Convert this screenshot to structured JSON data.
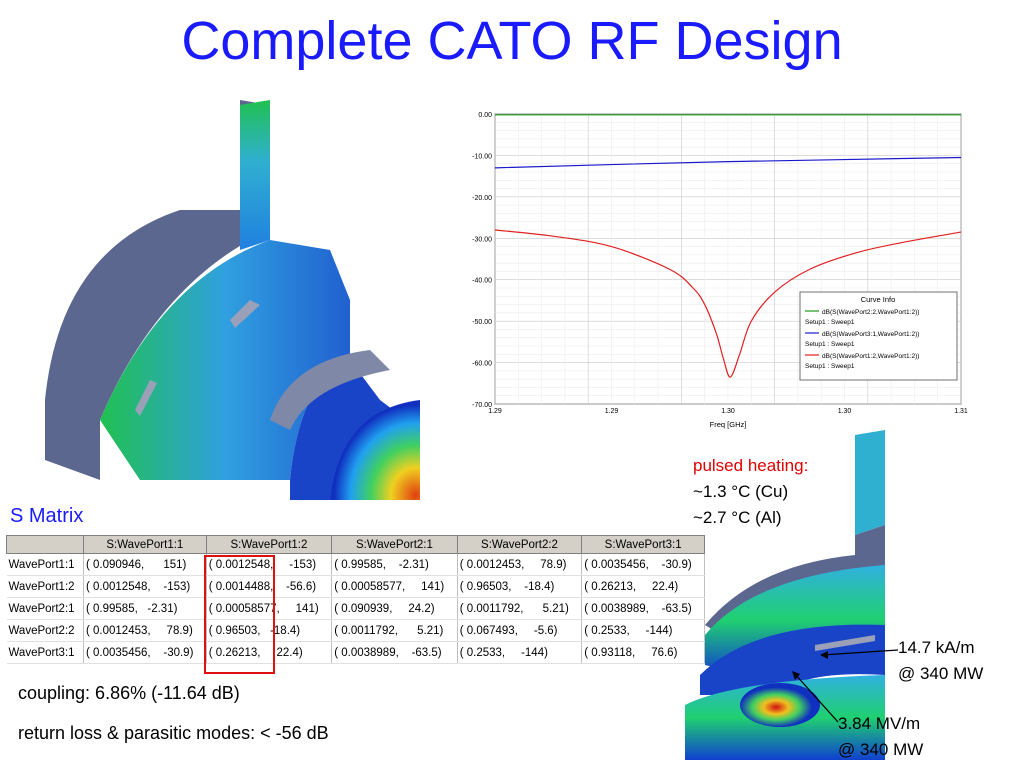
{
  "slide": {
    "title": "Complete CATO RF Design"
  },
  "chart_data": {
    "type": "line",
    "xlabel": "Freq [GHz]",
    "ylim": [
      -70,
      0
    ],
    "xlim": [
      1.2875,
      1.3075
    ],
    "yticks": [
      "0.00",
      "-10.00",
      "-20.00",
      "-30.00",
      "-40.00",
      "-50.00",
      "-60.00",
      "-70.00"
    ],
    "ytick_values": [
      0,
      -10,
      -20,
      -30,
      -40,
      -50,
      -60,
      -70
    ],
    "xticks": [
      "1.29",
      "1.29",
      "1.30",
      "1.30",
      "1.31"
    ],
    "xtick_values": [
      1.2875,
      1.2925,
      1.2975,
      1.3025,
      1.3075
    ],
    "grid": true,
    "legend_title": "Curve Info",
    "legend_position": "bottom-right",
    "series": [
      {
        "name": "dB(S(WavePort2:2,WavePort1:2))",
        "sub": "Setup1 : Sweep1",
        "color": "#1a9a1a",
        "x": [
          1.2875,
          1.2925,
          1.2975,
          1.3025,
          1.3075
        ],
        "values": [
          -0.2,
          -0.2,
          -0.2,
          -0.2,
          -0.2
        ]
      },
      {
        "name": "dB(S(WavePort3:1,WavePort1:2))",
        "sub": "Setup1 : Sweep1",
        "color": "#1a1acc",
        "x": [
          1.2875,
          1.2925,
          1.2975,
          1.3025,
          1.3075
        ],
        "values": [
          -13.0,
          -12.2,
          -11.5,
          -11.0,
          -10.5
        ]
      },
      {
        "name": "dB(S(WavePort1:2,WavePort1:2))",
        "sub": "Setup1 : Sweep1",
        "color": "#e02020",
        "x": [
          1.2875,
          1.29,
          1.2925,
          1.295,
          1.296,
          1.2965,
          1.297,
          1.2973,
          1.2976,
          1.298,
          1.2985,
          1.2995,
          1.301,
          1.303,
          1.305,
          1.3075
        ],
        "values": [
          -28.0,
          -29.5,
          -32.0,
          -37.5,
          -42.0,
          -46.0,
          -53.0,
          -59.0,
          -63.5,
          -58.0,
          -50.0,
          -43.0,
          -37.5,
          -33.5,
          -31.0,
          -28.5
        ]
      }
    ]
  },
  "smatrix": {
    "label": "S Matrix",
    "columns": [
      "",
      "S:WavePort1:1",
      "S:WavePort1:2",
      "S:WavePort2:1",
      "S:WavePort2:2",
      "S:WavePort3:1"
    ],
    "rows": [
      [
        "WavePort1:1",
        "( 0.090946,      151)",
        "( 0.0012548,     -153)",
        "( 0.99585,    -2.31)",
        "( 0.0012453,     78.9)",
        "( 0.0035456,    -30.9)"
      ],
      [
        "WavePort1:2",
        "( 0.0012548,    -153)",
        "( 0.0014488,    -56.6)",
        "( 0.00058577,     141)",
        "( 0.96503,    -18.4)",
        "( 0.26213,     22.4)"
      ],
      [
        "WavePort2:1",
        "( 0.99585,   -2.31)",
        "( 0.00058577,     141)",
        "( 0.090939,     24.2)",
        "( 0.0011792,      5.21)",
        "( 0.0038989,    -63.5)"
      ],
      [
        "WavePort2:2",
        "( 0.0012453,     78.9)",
        "( 0.96503,   -18.4)",
        "( 0.0011792,      5.21)",
        "( 0.067493,     -5.6)",
        "( 0.2533,     -144)"
      ],
      [
        "WavePort3:1",
        "( 0.0035456,    -30.9)",
        "( 0.26213,     22.4)",
        "( 0.0038989,    -63.5)",
        "( 0.2533,     -144)",
        "( 0.93118,     76.6)"
      ]
    ]
  },
  "notes": {
    "coupling": "coupling: 6.86% (-11.64 dB)",
    "return_loss": "return loss & parasitic modes:  < -56 dB"
  },
  "annotations": {
    "pulsed_heating": "pulsed heating:",
    "cu": "~1.3 °C (Cu)",
    "al": "~2.7 °C (Al)",
    "h_field": "14.7 kA/m",
    "h_power": "@ 340 MW",
    "e_field": "3.84 MV/m",
    "e_power": "@ 340 MW"
  },
  "colors": {
    "title": "#1a1aff",
    "highlight": "#e01010",
    "pulsed_heating": "#e00000"
  }
}
